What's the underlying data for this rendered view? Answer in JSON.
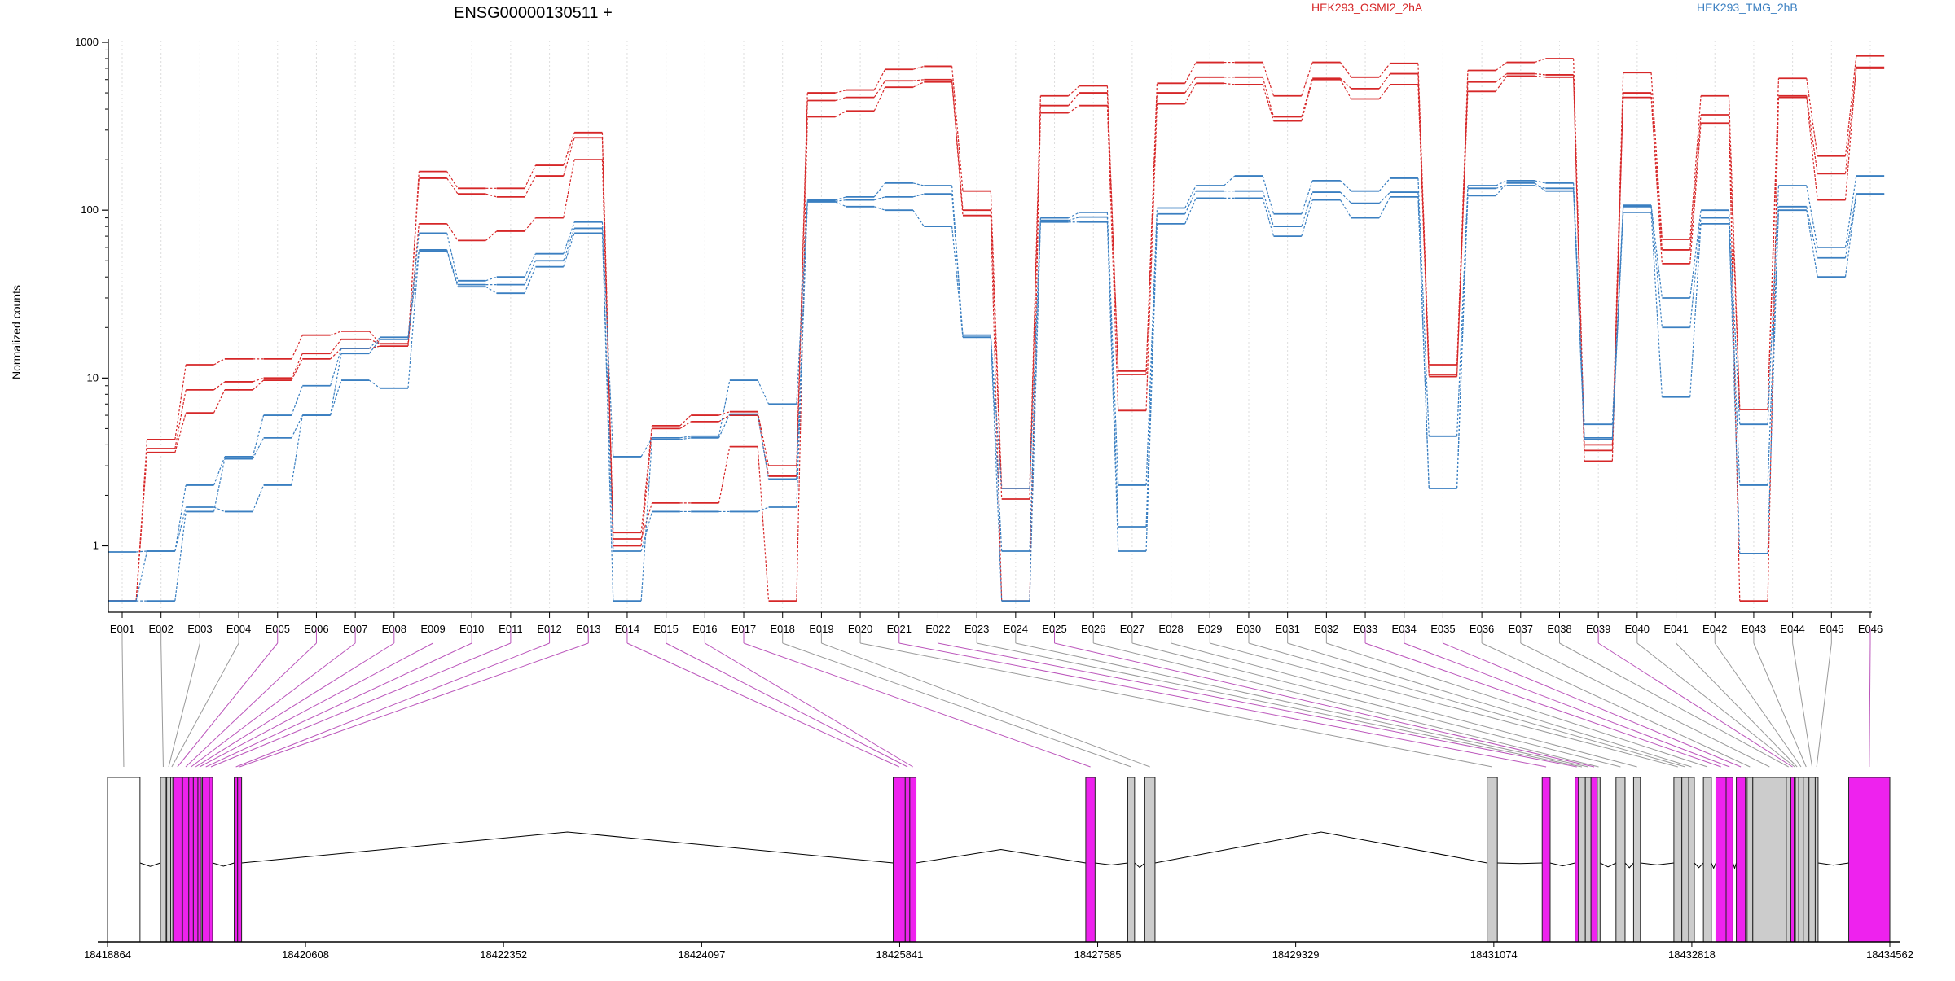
{
  "chart_data": {
    "type": "line",
    "title": "ENSG00000130511 +",
    "xlabel": "",
    "ylabel": "Normalized counts",
    "yscale": "log",
    "ylim": [
      0.45,
      1000
    ],
    "y_ticks": [
      "1",
      "10",
      "100",
      "1000"
    ],
    "legend_placement": "top",
    "colors": {
      "HEK293_OSMI2_2hA": "#d62728",
      "HEK293_TMG_2hB": "#3a7fc1",
      "exon_highlight": "#ee22ee",
      "exon_plain": "#cccccc",
      "link_highlight": "#bb55bb",
      "link_plain": "#999999"
    },
    "categories": [
      "E001",
      "E002",
      "E003",
      "E004",
      "E005",
      "E006",
      "E007",
      "E008",
      "E009",
      "E010",
      "E011",
      "E012",
      "E013",
      "E014",
      "E015",
      "E016",
      "E017",
      "E018",
      "E019",
      "E020",
      "E021",
      "E022",
      "E023",
      "E024",
      "E025",
      "E026",
      "E027",
      "E028",
      "E029",
      "E030",
      "E031",
      "E032",
      "E033",
      "E034",
      "E035",
      "E036",
      "E037",
      "E038",
      "E039",
      "E040",
      "E041",
      "E042",
      "E043",
      "E044",
      "E045",
      "E046"
    ],
    "legend": [
      {
        "name": "HEK293_OSMI2_2hA",
        "color": "#d62728"
      },
      {
        "name": "HEK293_TMG_2hB",
        "color": "#3a7fc1"
      }
    ],
    "series": [
      {
        "group": "HEK293_OSMI2_2hA",
        "values": [
          0.47,
          4.3,
          12,
          13,
          13,
          18,
          19,
          16,
          170,
          135,
          135,
          185,
          290,
          1.2,
          5.2,
          6,
          6.3,
          3,
          500,
          520,
          690,
          720,
          130,
          2.2,
          480,
          550,
          11,
          570,
          760,
          760,
          480,
          760,
          620,
          750,
          12,
          680,
          760,
          800,
          4,
          660,
          67,
          480,
          6.5,
          610,
          210,
          830
        ]
      },
      {
        "group": "HEK293_OSMI2_2hA",
        "values": [
          0.47,
          3.8,
          8.5,
          9.5,
          10,
          14,
          17,
          16,
          155,
          125,
          120,
          160,
          270,
          1,
          5,
          5.5,
          6,
          2.6,
          450,
          470,
          590,
          600,
          100,
          1.9,
          420,
          500,
          10.5,
          500,
          620,
          620,
          360,
          610,
          530,
          650,
          10.5,
          580,
          650,
          640,
          3.7,
          500,
          58,
          370,
          0.47,
          480,
          165,
          700
        ]
      },
      {
        "group": "HEK293_OSMI2_2hA",
        "values": [
          0.47,
          3.6,
          6.2,
          8.5,
          9.7,
          13,
          15,
          15.5,
          83,
          66,
          75,
          90,
          200,
          1.1,
          1.8,
          1.8,
          3.9,
          0.47,
          360,
          390,
          540,
          580,
          93,
          0.47,
          380,
          420,
          6.4,
          430,
          570,
          560,
          340,
          600,
          460,
          560,
          10.2,
          510,
          630,
          620,
          3.2,
          470,
          48,
          330,
          6.5,
          470,
          115,
          710
        ]
      },
      {
        "group": "HEK293_TMG_2hB",
        "values": [
          0.92,
          0.93,
          2.3,
          3.4,
          6,
          9,
          15,
          17.5,
          73,
          38,
          40,
          55,
          85,
          3.4,
          4.4,
          4.5,
          9.7,
          7,
          115,
          120,
          145,
          140,
          17.5,
          2.2,
          90,
          97,
          2.3,
          103,
          140,
          160,
          95,
          150,
          130,
          155,
          4.5,
          140,
          150,
          145,
          5.3,
          107,
          30,
          100,
          5.3,
          140,
          60,
          160
        ]
      },
      {
        "group": "HEK293_TMG_2hB",
        "values": [
          0.47,
          0.47,
          1.6,
          3.3,
          4.4,
          6,
          14,
          17,
          58,
          36,
          36,
          50,
          78,
          0.47,
          4.3,
          4.4,
          6.1,
          2.5,
          113,
          115,
          120,
          125,
          18,
          0.47,
          87,
          91,
          1.3,
          95,
          130,
          130,
          80,
          128,
          110,
          128,
          2.2,
          135,
          140,
          135,
          4.4,
          105,
          20,
          90,
          0.9,
          105,
          52,
          125
        ]
      },
      {
        "group": "HEK293_TMG_2hB",
        "values": [
          0.47,
          0.93,
          1.7,
          1.6,
          2.3,
          6,
          9.7,
          8.7,
          57,
          35,
          32,
          46,
          73,
          0.93,
          1.6,
          1.6,
          1.6,
          1.7,
          112,
          105,
          100,
          80,
          17.5,
          0.93,
          85,
          85,
          0.93,
          83,
          118,
          118,
          70,
          115,
          90,
          120,
          2.2,
          122,
          145,
          130,
          4.3,
          97,
          7.7,
          83,
          2.3,
          100,
          40,
          125
        ]
      }
    ],
    "x_genomic_ticks": [
      "18418864",
      "18420608",
      "18422352",
      "18424097",
      "18425841",
      "18427585",
      "18429329",
      "18431074",
      "18432818",
      "18434562"
    ],
    "gene_range": [
      18418864,
      18434562
    ],
    "exons": [
      {
        "id": "E001",
        "start": 18418864,
        "end": 18419150,
        "highlight": false
      },
      {
        "id": "E002",
        "start": 18419330,
        "end": 18419380,
        "highlight": false
      },
      {
        "id": "E003",
        "start": 18419385,
        "end": 18419420,
        "highlight": false
      },
      {
        "id": "E004",
        "start": 18419420,
        "end": 18419440,
        "highlight": false
      },
      {
        "id": "E005",
        "start": 18419440,
        "end": 18419520,
        "highlight": true
      },
      {
        "id": "E006",
        "start": 18419525,
        "end": 18419580,
        "highlight": true
      },
      {
        "id": "E007",
        "start": 18419580,
        "end": 18419620,
        "highlight": true
      },
      {
        "id": "E008",
        "start": 18419620,
        "end": 18419660,
        "highlight": true
      },
      {
        "id": "E009",
        "start": 18419660,
        "end": 18419690,
        "highlight": true
      },
      {
        "id": "E010",
        "start": 18419700,
        "end": 18419760,
        "highlight": true
      },
      {
        "id": "E011",
        "start": 18419760,
        "end": 18419790,
        "highlight": true
      },
      {
        "id": "E012",
        "start": 18419980,
        "end": 18420010,
        "highlight": true
      },
      {
        "id": "E013",
        "start": 18420010,
        "end": 18420045,
        "highlight": true
      },
      {
        "id": "E014",
        "start": 18425784,
        "end": 18425890,
        "highlight": true
      },
      {
        "id": "E015",
        "start": 18425890,
        "end": 18425930,
        "highlight": true
      },
      {
        "id": "E016",
        "start": 18425930,
        "end": 18425985,
        "highlight": true
      },
      {
        "id": "E017",
        "start": 18427480,
        "end": 18427562,
        "highlight": true
      },
      {
        "id": "E018",
        "start": 18427850,
        "end": 18427910,
        "highlight": false
      },
      {
        "id": "E019",
        "start": 18428000,
        "end": 18428090,
        "highlight": false
      },
      {
        "id": "E020",
        "start": 18431015,
        "end": 18431105,
        "highlight": false
      },
      {
        "id": "E021",
        "start": 18431500,
        "end": 18431570,
        "highlight": true
      },
      {
        "id": "E022",
        "start": 18431790,
        "end": 18431820,
        "highlight": true
      },
      {
        "id": "E023",
        "start": 18431820,
        "end": 18431880,
        "highlight": false
      },
      {
        "id": "E024",
        "start": 18431880,
        "end": 18431930,
        "highlight": false
      },
      {
        "id": "E025",
        "start": 18431930,
        "end": 18431985,
        "highlight": true
      },
      {
        "id": "E026",
        "start": 18431985,
        "end": 18432010,
        "highlight": false
      },
      {
        "id": "E027",
        "start": 18432150,
        "end": 18432230,
        "highlight": false
      },
      {
        "id": "E028",
        "start": 18432305,
        "end": 18432365,
        "highlight": false
      },
      {
        "id": "E029",
        "start": 18432660,
        "end": 18432730,
        "highlight": false
      },
      {
        "id": "E030",
        "start": 18432730,
        "end": 18432790,
        "highlight": false
      },
      {
        "id": "E031",
        "start": 18432790,
        "end": 18432840,
        "highlight": false
      },
      {
        "id": "E032",
        "start": 18432920,
        "end": 18432990,
        "highlight": false
      },
      {
        "id": "E033",
        "start": 18433030,
        "end": 18433120,
        "highlight": true
      },
      {
        "id": "E034",
        "start": 18433120,
        "end": 18433180,
        "highlight": true
      },
      {
        "id": "E035",
        "start": 18433210,
        "end": 18433290,
        "highlight": true
      },
      {
        "id": "E036",
        "start": 18433305,
        "end": 18433355,
        "highlight": false
      },
      {
        "id": "E037",
        "start": 18433355,
        "end": 18433650,
        "highlight": false
      },
      {
        "id": "E038",
        "start": 18433650,
        "end": 18433690,
        "highlight": false
      },
      {
        "id": "E039",
        "start": 18433690,
        "end": 18433720,
        "highlight": true
      },
      {
        "id": "E040",
        "start": 18433720,
        "end": 18433730,
        "highlight": false
      },
      {
        "id": "E041",
        "start": 18433730,
        "end": 18433760,
        "highlight": false
      },
      {
        "id": "E042",
        "start": 18433760,
        "end": 18433800,
        "highlight": false
      },
      {
        "id": "E043",
        "start": 18433800,
        "end": 18433850,
        "highlight": false
      },
      {
        "id": "E044",
        "start": 18433850,
        "end": 18433905,
        "highlight": false
      },
      {
        "id": "E045",
        "start": 18433905,
        "end": 18433930,
        "highlight": false
      },
      {
        "id": "E046",
        "start": 18434200,
        "end": 18434562,
        "highlight": true
      }
    ],
    "introns": [
      {
        "from": 18419150,
        "to": 18419330
      },
      {
        "from": 18419790,
        "to": 18419980
      },
      {
        "from": 18420045,
        "to": 18425784
      },
      {
        "from": 18425985,
        "to": 18427480
      },
      {
        "from": 18427562,
        "to": 18427850
      },
      {
        "from": 18427910,
        "to": 18428000
      },
      {
        "from": 18428090,
        "to": 18431015
      },
      {
        "from": 18431105,
        "to": 18431500
      },
      {
        "from": 18431570,
        "to": 18431790
      },
      {
        "from": 18432010,
        "to": 18432150
      },
      {
        "from": 18432230,
        "to": 18432305
      },
      {
        "from": 18432365,
        "to": 18432660
      },
      {
        "from": 18432840,
        "to": 18432920
      },
      {
        "from": 18432990,
        "to": 18433030
      },
      {
        "from": 18433180,
        "to": 18433210
      },
      {
        "from": 18433930,
        "to": 18434200
      }
    ]
  }
}
